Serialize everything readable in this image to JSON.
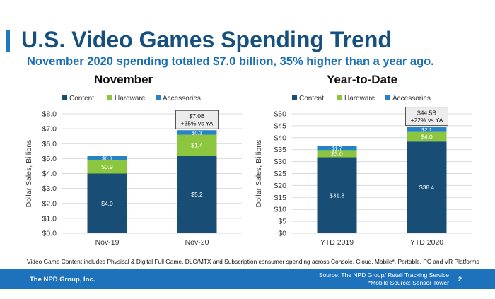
{
  "title": "U.S. Video Games Spending Trend",
  "subtitle": "November 2020 spending totaled $7.0 billion, 35% higher than a year ago.",
  "colors": {
    "accent": "#1f7bc1",
    "title": "#15507f",
    "subtitle": "#1a6fb6",
    "content": "#184d76",
    "hardware": "#8cc63e",
    "accessories": "#2583c6",
    "footer": "#1e72bb"
  },
  "footnote": "Video Game Content includes Physical & Digital Full Game, DLC/MTX and Subscription consumer spending across Console, Cloud, Mobile*, Portable, PC and VR Platforms",
  "footer": {
    "company": "The NPD Group, Inc.",
    "source_line1": "Source: The NPD Group/ Retail Tracking Service",
    "source_line2": "*Mobile Source: Sensor Tower",
    "page": "2"
  },
  "chart_data": [
    {
      "type": "bar",
      "stacked": true,
      "title": "November",
      "ylabel": "Dollar Sales, Billions",
      "ylim": [
        0,
        8
      ],
      "yticks": [
        "$0.0",
        "$1.0",
        "$2.0",
        "$3.0",
        "$4.0",
        "$5.0",
        "$6.0",
        "$7.0",
        "$8.0"
      ],
      "categories": [
        "Nov-19",
        "Nov-20"
      ],
      "series": [
        {
          "name": "Content",
          "values": [
            4.0,
            5.2
          ],
          "labels": [
            "$4.0",
            "$5.2"
          ]
        },
        {
          "name": "Hardware",
          "values": [
            0.9,
            1.4
          ],
          "labels": [
            "$0.9",
            "$1.4"
          ]
        },
        {
          "name": "Accessories",
          "values": [
            0.3,
            0.3
          ],
          "labels": [
            "$0.3",
            "$0.3"
          ]
        }
      ],
      "callout": {
        "category_index": 1,
        "line1": "$7.0B",
        "line2": "+35% vs YA"
      }
    },
    {
      "type": "bar",
      "stacked": true,
      "title": "Year-to-Date",
      "ylabel": "Dollar Sales, Billions",
      "ylim": [
        0,
        50
      ],
      "yticks": [
        "$0",
        "$5",
        "$10",
        "$15",
        "$20",
        "$25",
        "$30",
        "$35",
        "$40",
        "$45",
        "$50"
      ],
      "categories": [
        "YTD 2019",
        "YTD 2020"
      ],
      "series": [
        {
          "name": "Content",
          "values": [
            31.8,
            38.4
          ],
          "labels": [
            "$31.8",
            "$38.4"
          ]
        },
        {
          "name": "Hardware",
          "values": [
            3.0,
            4.0
          ],
          "labels": [
            "$3.0",
            "$4.0"
          ]
        },
        {
          "name": "Accessories",
          "values": [
            1.7,
            2.1
          ],
          "labels": [
            "$1.7",
            "$2.1"
          ]
        }
      ],
      "callout": {
        "category_index": 1,
        "line1": "$44.5B",
        "line2": "+22% vs YA"
      }
    }
  ]
}
